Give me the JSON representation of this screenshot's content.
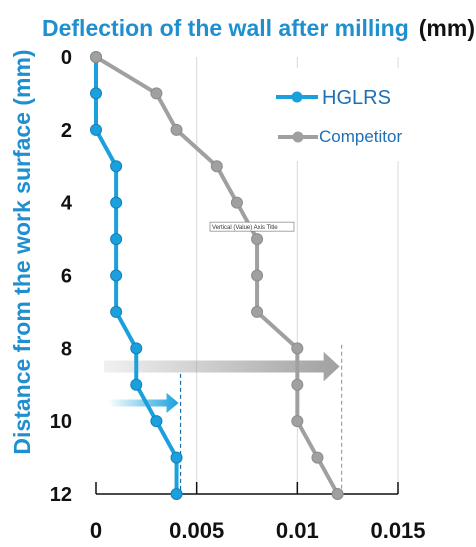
{
  "chart_data": {
    "type": "line",
    "title": "Deflection of the wall after milling",
    "title_unit": "(mm)",
    "ylabel": "Distance from the work surface (mm)",
    "xlabel": "",
    "xlim": [
      0,
      0.015
    ],
    "ylim": [
      0,
      12
    ],
    "x_ticks": [
      "0",
      "0.005",
      "0.01",
      "0.015"
    ],
    "y_ticks": [
      "0",
      "2",
      "4",
      "6",
      "8",
      "10",
      "12"
    ],
    "y_inverted": true,
    "grid": "vertical",
    "legend": "top-right",
    "series": [
      {
        "name": "HGLRS",
        "color": "#1aa0dc",
        "points": [
          {
            "x": 0,
            "y": 0
          },
          {
            "x": 0,
            "y": 1
          },
          {
            "x": 0,
            "y": 2
          },
          {
            "x": 0.001,
            "y": 3
          },
          {
            "x": 0.001,
            "y": 4
          },
          {
            "x": 0.001,
            "y": 5
          },
          {
            "x": 0.001,
            "y": 6
          },
          {
            "x": 0.001,
            "y": 7
          },
          {
            "x": 0.002,
            "y": 8
          },
          {
            "x": 0.002,
            "y": 9
          },
          {
            "x": 0.003,
            "y": 10
          },
          {
            "x": 0.004,
            "y": 11
          },
          {
            "x": 0.004,
            "y": 12
          }
        ]
      },
      {
        "name": "Competitor",
        "color": "#a0a0a0",
        "label_color": "#1f6fb5",
        "points": [
          {
            "x": 0,
            "y": 0
          },
          {
            "x": 0.003,
            "y": 1
          },
          {
            "x": 0.004,
            "y": 2
          },
          {
            "x": 0.006,
            "y": 3
          },
          {
            "x": 0.007,
            "y": 4
          },
          {
            "x": 0.008,
            "y": 5
          },
          {
            "x": 0.008,
            "y": 6
          },
          {
            "x": 0.008,
            "y": 7
          },
          {
            "x": 0.01,
            "y": 8
          },
          {
            "x": 0.01,
            "y": 9
          },
          {
            "x": 0.01,
            "y": 10
          },
          {
            "x": 0.011,
            "y": 11
          },
          {
            "x": 0.012,
            "y": 12
          }
        ]
      }
    ],
    "annotations": {
      "tooltip": "Vertical (Value) Axis Title",
      "tooltip_at": {
        "x": 0.0075,
        "y": 4.7
      },
      "max_markers": [
        {
          "series": "HGLRS",
          "x": 0.0042,
          "y_from": 8.7,
          "arrow_y": 9.5,
          "color": "#1aa0dc"
        },
        {
          "series": "Competitor",
          "x": 0.0122,
          "y_from": 7.9,
          "arrow_y": 8.5,
          "color": "#a0a0a0"
        }
      ]
    },
    "colors": {
      "title": "#1f8fd0",
      "title_unit": "#111111",
      "ylabel": "#1f8fd0",
      "axis": "#111111",
      "grid": "#d9d9d9"
    }
  }
}
